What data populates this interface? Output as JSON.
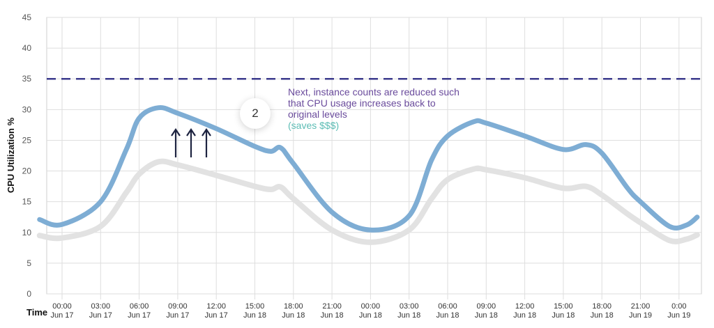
{
  "chart_data": {
    "type": "line",
    "title": "",
    "xlabel": "Time",
    "ylabel": "CPU Utilization %",
    "ylim": [
      0,
      45
    ],
    "yticks": [
      0,
      5,
      10,
      15,
      20,
      25,
      30,
      35,
      40,
      45
    ],
    "grid": true,
    "xtick_labels": [
      [
        "00:00",
        "Jun 17"
      ],
      [
        "03:00",
        "Jun 17"
      ],
      [
        "06:00",
        "Jun 17"
      ],
      [
        "09:00",
        "Jun 17"
      ],
      [
        "12:00",
        "Jun 17"
      ],
      [
        "15:00",
        "Jun 18"
      ],
      [
        "18:00",
        "Jun 18"
      ],
      [
        "21:00",
        "Jun 18"
      ],
      [
        "00:00",
        "Jun 18"
      ],
      [
        "03:00",
        "Jun 18"
      ],
      [
        "06:00",
        "Jun 18"
      ],
      [
        "09:00",
        "Jun 18"
      ],
      [
        "12:00",
        "Jun 18"
      ],
      [
        "15:00",
        "Jun 18"
      ],
      [
        "18:00",
        "Jun 18"
      ],
      [
        "21:00",
        "Jun 19"
      ],
      [
        "0:00",
        "Jun 19"
      ]
    ],
    "x": [
      "Jun 16 22:15",
      "Jun 17 00:00",
      "Jun 17 03:00",
      "Jun 17 05:00",
      "Jun 17 06:00",
      "Jun 17 07:30",
      "Jun 17 09:00",
      "Jun 17 12:00",
      "Jun 17 15:00",
      "Jun 17 16:15",
      "Jun 17 17:00",
      "Jun 17 18:00",
      "Jun 17 21:00",
      "Jun 18 00:00",
      "Jun 18 03:00",
      "Jun 18 04:45",
      "Jun 18 06:00",
      "Jun 18 08:00",
      "Jun 18 09:00",
      "Jun 18 12:00",
      "Jun 18 15:00",
      "Jun 18 16:45",
      "Jun 18 18:00",
      "Jun 18 20:00",
      "Jun 18 21:00",
      "Jun 18 23:15",
      "Jun 19 00:35",
      "Jun 19 01:25"
    ],
    "series": [
      {
        "color": "#e2e2e2",
        "values": [
          9.5,
          9.1,
          11.0,
          16.5,
          19.5,
          21.5,
          21.0,
          19.3,
          17.5,
          17.0,
          17.4,
          15.5,
          10.4,
          8.4,
          10.4,
          15.5,
          18.6,
          20.3,
          20.2,
          18.9,
          17.2,
          17.5,
          16.1,
          13.0,
          11.6,
          8.7,
          8.9,
          9.6
        ]
      },
      {
        "color": "#7eadd4",
        "values": [
          12.1,
          11.3,
          15.0,
          23.5,
          28.6,
          30.3,
          29.4,
          26.9,
          24.0,
          23.2,
          23.8,
          21.2,
          13.3,
          10.4,
          12.7,
          21.8,
          25.7,
          28.0,
          27.8,
          25.7,
          23.5,
          24.3,
          22.9,
          17.2,
          15.0,
          11.0,
          11.2,
          12.5
        ]
      }
    ],
    "reference_line": {
      "y": 35,
      "style": "dashed",
      "color": "#3b3a8c"
    },
    "annotation": {
      "step": "2",
      "text_lines": [
        "Next, instance counts are reduced such",
        "that CPU usage increases back to",
        "original levels"
      ],
      "savings": "(saves $$$)",
      "text_color": "#6a4b9c",
      "savings_color": "#5cbdb5",
      "arrows": 3,
      "arrow_icon": "arrow-up-icon"
    }
  }
}
